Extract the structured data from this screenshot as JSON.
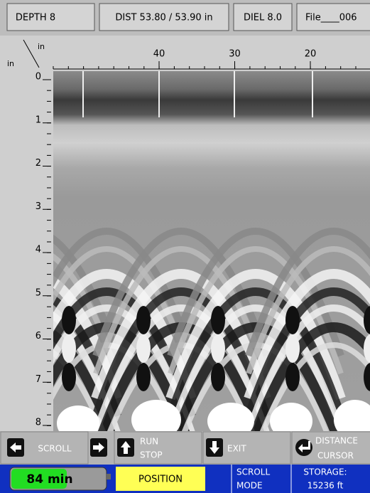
{
  "header": {
    "fields": [
      "DEPTH 8",
      "DIST 53.80 / 53.90 in",
      "DIEL 8.0",
      "File____006"
    ]
  },
  "axes": {
    "x_unit": "in",
    "y_unit": "in",
    "x_ticks": [
      40,
      30,
      20
    ],
    "y_ticks": [
      0,
      1,
      2,
      3,
      4,
      5,
      6,
      7,
      8
    ]
  },
  "buttons": [
    {
      "lines": [
        "SCROLL"
      ]
    },
    {
      "lines": [
        "RUN",
        "STOP"
      ]
    },
    {
      "lines": [
        "EXIT"
      ]
    },
    {
      "lines": [
        "DISTANCE",
        "CURSOR"
      ]
    }
  ],
  "status": {
    "battery": "84 min",
    "mode_button": "POSITION",
    "scroll_mode": [
      "SCROLL",
      "MODE"
    ],
    "storage": [
      "STORAGE:",
      "15236 ft"
    ]
  }
}
